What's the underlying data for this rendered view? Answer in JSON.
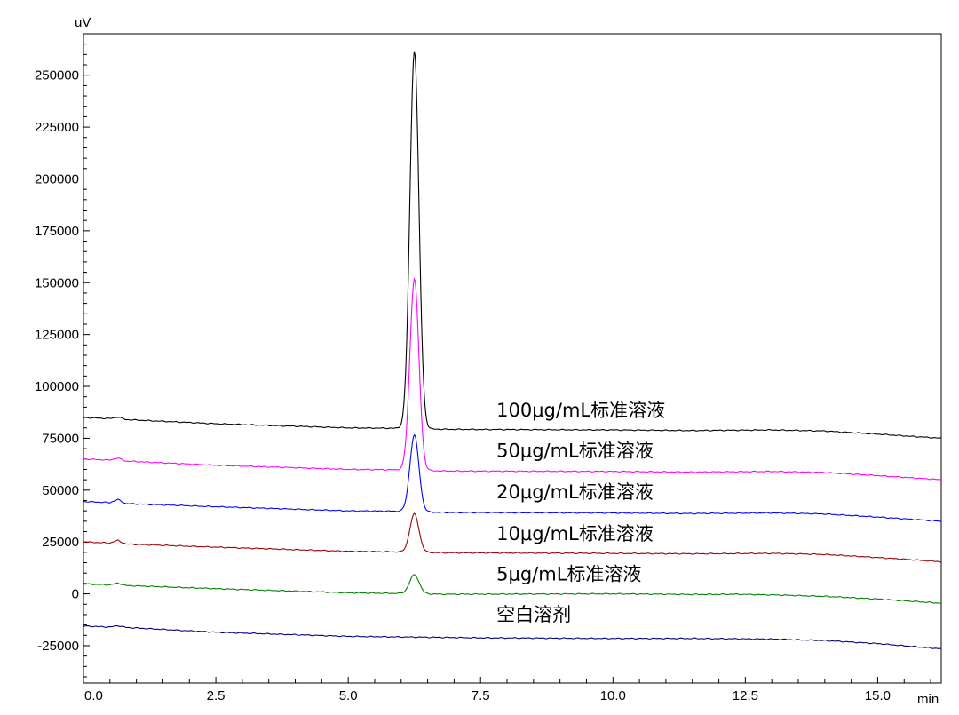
{
  "chart_data": {
    "type": "line",
    "y_unit": "uV",
    "x_unit": "min",
    "xlim": [
      0.0,
      16.2
    ],
    "ylim": [
      -43000,
      270000
    ],
    "grid": false,
    "x_ticks": [
      0.0,
      2.5,
      5.0,
      7.5,
      10.0,
      12.5,
      15.0
    ],
    "x_tick_labels": [
      "0.0",
      "2.5",
      "5.0",
      "7.5",
      "10.0",
      "12.5",
      "15.0"
    ],
    "y_ticks": [
      -25000,
      0,
      25000,
      50000,
      75000,
      100000,
      125000,
      150000,
      175000,
      200000,
      225000,
      250000
    ],
    "y_tick_labels": [
      "-25000",
      "0",
      "25000",
      "50000",
      "75000",
      "100000",
      "125000",
      "150000",
      "175000",
      "200000",
      "225000",
      "250000"
    ],
    "series": [
      {
        "name": "100μg/mL标准溶液",
        "color": "#000000",
        "baseline": [
          [
            0.0,
            85000
          ],
          [
            0.5,
            84500
          ],
          [
            0.65,
            85300
          ],
          [
            0.8,
            84000
          ],
          [
            2.5,
            82000
          ],
          [
            5.0,
            80000
          ],
          [
            6.0,
            79800
          ],
          [
            6.8,
            79300
          ],
          [
            10.0,
            79000
          ],
          [
            11.5,
            78700
          ],
          [
            13.0,
            79000
          ],
          [
            14.0,
            78500
          ],
          [
            15.0,
            77000
          ],
          [
            16.2,
            75000
          ]
        ],
        "peak": {
          "rt": 6.25,
          "height": 262000,
          "sigma": 0.085
        },
        "label_at": [
          7.8,
          85500
        ]
      },
      {
        "name": "50μg/mL标准溶液",
        "color": "#ff00ff",
        "baseline": [
          [
            0.0,
            65000
          ],
          [
            0.5,
            64500
          ],
          [
            0.65,
            65500
          ],
          [
            0.8,
            64000
          ],
          [
            2.5,
            62000
          ],
          [
            5.0,
            60000
          ],
          [
            6.0,
            59800
          ],
          [
            6.8,
            59200
          ],
          [
            10.0,
            59000
          ],
          [
            11.5,
            58700
          ],
          [
            13.0,
            59000
          ],
          [
            14.0,
            58500
          ],
          [
            15.0,
            57000
          ],
          [
            16.2,
            55000
          ]
        ],
        "peak": {
          "rt": 6.25,
          "height": 152000,
          "sigma": 0.085
        },
        "label_at": [
          7.8,
          66000
        ]
      },
      {
        "name": "20μg/mL标准溶液",
        "color": "#0000ff",
        "baseline": [
          [
            0.0,
            44500
          ],
          [
            0.5,
            44000
          ],
          [
            0.65,
            45500
          ],
          [
            0.8,
            43500
          ],
          [
            2.5,
            42000
          ],
          [
            5.0,
            40000
          ],
          [
            6.0,
            39800
          ],
          [
            6.8,
            39200
          ],
          [
            10.0,
            39000
          ],
          [
            11.5,
            38700
          ],
          [
            13.0,
            39000
          ],
          [
            14.0,
            38500
          ],
          [
            15.0,
            37000
          ],
          [
            16.2,
            35000
          ]
        ],
        "peak": {
          "rt": 6.25,
          "height": 76500,
          "sigma": 0.085
        },
        "label_at": [
          7.8,
          46000
        ]
      },
      {
        "name": "10μg/mL标准溶液",
        "color": "#990000",
        "baseline": [
          [
            0.0,
            25000
          ],
          [
            0.5,
            24500
          ],
          [
            0.65,
            25800
          ],
          [
            0.8,
            24000
          ],
          [
            2.5,
            22500
          ],
          [
            5.0,
            20500
          ],
          [
            6.0,
            20200
          ],
          [
            6.8,
            19800
          ],
          [
            10.0,
            19500
          ],
          [
            11.5,
            19300
          ],
          [
            13.0,
            19500
          ],
          [
            14.0,
            19000
          ],
          [
            15.0,
            17500
          ],
          [
            16.2,
            15500
          ]
        ],
        "peak": {
          "rt": 6.25,
          "height": 38500,
          "sigma": 0.085
        },
        "label_at": [
          7.8,
          26000
        ]
      },
      {
        "name": "5μg/mL标准溶液",
        "color": "#008000",
        "baseline": [
          [
            0.0,
            4800
          ],
          [
            0.5,
            4300
          ],
          [
            0.65,
            5200
          ],
          [
            0.8,
            4000
          ],
          [
            2.5,
            2500
          ],
          [
            5.0,
            500
          ],
          [
            6.0,
            200
          ],
          [
            6.8,
            -200
          ],
          [
            10.0,
            0
          ],
          [
            11.5,
            -300
          ],
          [
            12.3,
            -200
          ],
          [
            13.0,
            -500
          ],
          [
            14.0,
            -1200
          ],
          [
            15.0,
            -2500
          ],
          [
            16.2,
            -4500
          ]
        ],
        "peak": {
          "rt": 6.25,
          "height": 9200,
          "sigma": 0.09
        },
        "label_at": [
          7.8,
          6500
        ]
      },
      {
        "name": "空白溶剂",
        "color": "#000080",
        "baseline": [
          [
            0.0,
            -15500
          ],
          [
            0.5,
            -16000
          ],
          [
            0.65,
            -15300
          ],
          [
            0.8,
            -16200
          ],
          [
            2.5,
            -18500
          ],
          [
            5.0,
            -20500
          ],
          [
            7.5,
            -21200
          ],
          [
            10.0,
            -21500
          ],
          [
            11.5,
            -21500
          ],
          [
            13.0,
            -21800
          ],
          [
            14.0,
            -22500
          ],
          [
            15.0,
            -24000
          ],
          [
            16.2,
            -26500
          ]
        ],
        "peak": null,
        "label_at": [
          7.8,
          -13000
        ]
      }
    ]
  }
}
